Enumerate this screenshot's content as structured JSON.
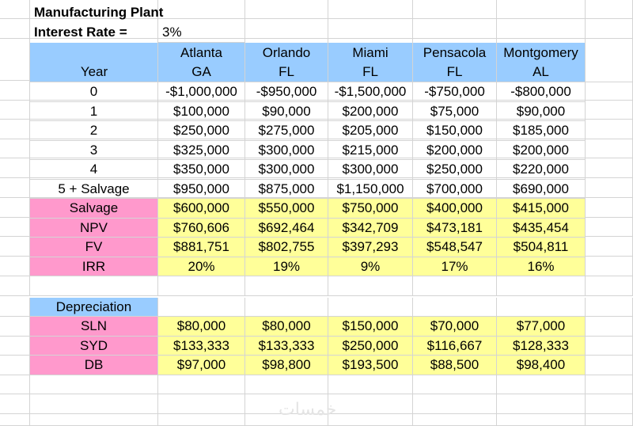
{
  "title": "Manufacturing Plant",
  "interest": {
    "label": "Interest Rate =",
    "value": "3%"
  },
  "colors": {
    "header_blue": "#99ccff",
    "label_pink": "#ff99cc",
    "value_yellow": "#ffff99"
  },
  "header": {
    "year_label": "Year",
    "cities": [
      {
        "city": "Atlanta",
        "state": "GA"
      },
      {
        "city": "Orlando",
        "state": "FL"
      },
      {
        "city": "Miami",
        "state": "FL"
      },
      {
        "city": "Pensacola",
        "state": "FL"
      },
      {
        "city": "Montgomery",
        "state": "AL"
      }
    ]
  },
  "cashflows": [
    {
      "year": "0",
      "values": [
        "-$1,000,000",
        "-$950,000",
        "-$1,500,000",
        "-$750,000",
        "-$800,000"
      ]
    },
    {
      "year": "1",
      "values": [
        "$100,000",
        "$90,000",
        "$200,000",
        "$75,000",
        "$90,000"
      ]
    },
    {
      "year": "2",
      "values": [
        "$250,000",
        "$275,000",
        "$205,000",
        "$150,000",
        "$185,000"
      ]
    },
    {
      "year": "3",
      "values": [
        "$325,000",
        "$300,000",
        "$215,000",
        "$200,000",
        "$200,000"
      ]
    },
    {
      "year": "4",
      "values": [
        "$350,000",
        "$300,000",
        "$300,000",
        "$250,000",
        "$220,000"
      ]
    },
    {
      "year": "5 + Salvage",
      "values": [
        "$950,000",
        "$875,000",
        "$1,150,000",
        "$700,000",
        "$690,000"
      ]
    }
  ],
  "metrics": [
    {
      "label": "Salvage",
      "values": [
        "$600,000",
        "$550,000",
        "$750,000",
        "$400,000",
        "$415,000"
      ]
    },
    {
      "label": "NPV",
      "values": [
        "$760,606",
        "$692,464",
        "$342,709",
        "$473,181",
        "$435,454"
      ]
    },
    {
      "label": "FV",
      "values": [
        "$881,751",
        "$802,755",
        "$397,293",
        "$548,547",
        "$504,811"
      ]
    },
    {
      "label": "IRR",
      "values": [
        "20%",
        "19%",
        "9%",
        "17%",
        "16%"
      ]
    }
  ],
  "depreciation": {
    "header": "Depreciation",
    "rows": [
      {
        "label": "SLN",
        "values": [
          "$80,000",
          "$80,000",
          "$150,000",
          "$70,000",
          "$77,000"
        ]
      },
      {
        "label": "SYD",
        "values": [
          "$133,333",
          "$133,333",
          "$250,000",
          "$116,667",
          "$128,333"
        ]
      },
      {
        "label": "DB",
        "values": [
          "$97,000",
          "$98,800",
          "$193,500",
          "$88,500",
          "$98,400"
        ]
      }
    ]
  },
  "watermark": "خمسات"
}
